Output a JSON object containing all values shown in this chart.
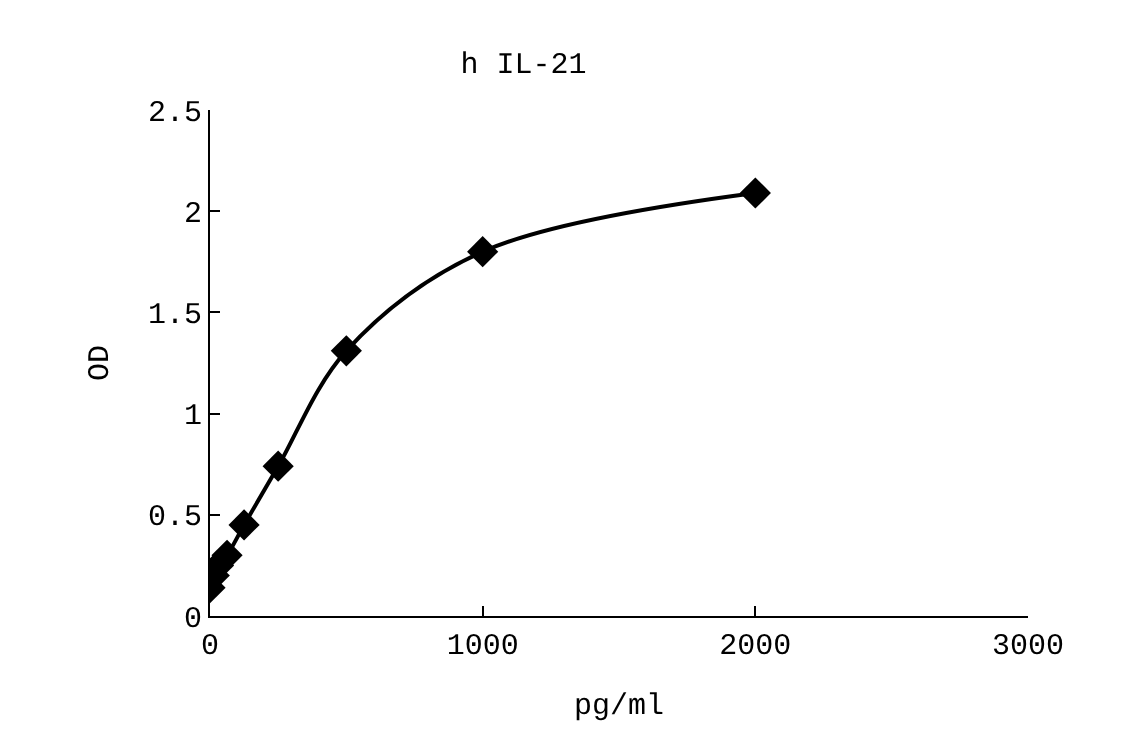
{
  "chart_data": {
    "type": "line",
    "title": "h IL-21",
    "xlabel": "pg/ml",
    "ylabel": "OD",
    "x": [
      0,
      15.6,
      31.25,
      62.5,
      125,
      250,
      500,
      1000,
      2000
    ],
    "series": [
      {
        "color": "#000000",
        "values": [
          0.14,
          0.2,
          0.25,
          0.3,
          0.45,
          0.74,
          1.31,
          1.8,
          2.09
        ]
      }
    ],
    "xlim": [
      0,
      3000
    ],
    "xticks": [
      0,
      1000,
      2000,
      3000
    ],
    "ylim": [
      0,
      2.5
    ],
    "yticks": [
      0,
      0.5,
      1,
      1.5,
      2,
      2.5
    ],
    "marker": "diamond",
    "line_style": "solid"
  }
}
